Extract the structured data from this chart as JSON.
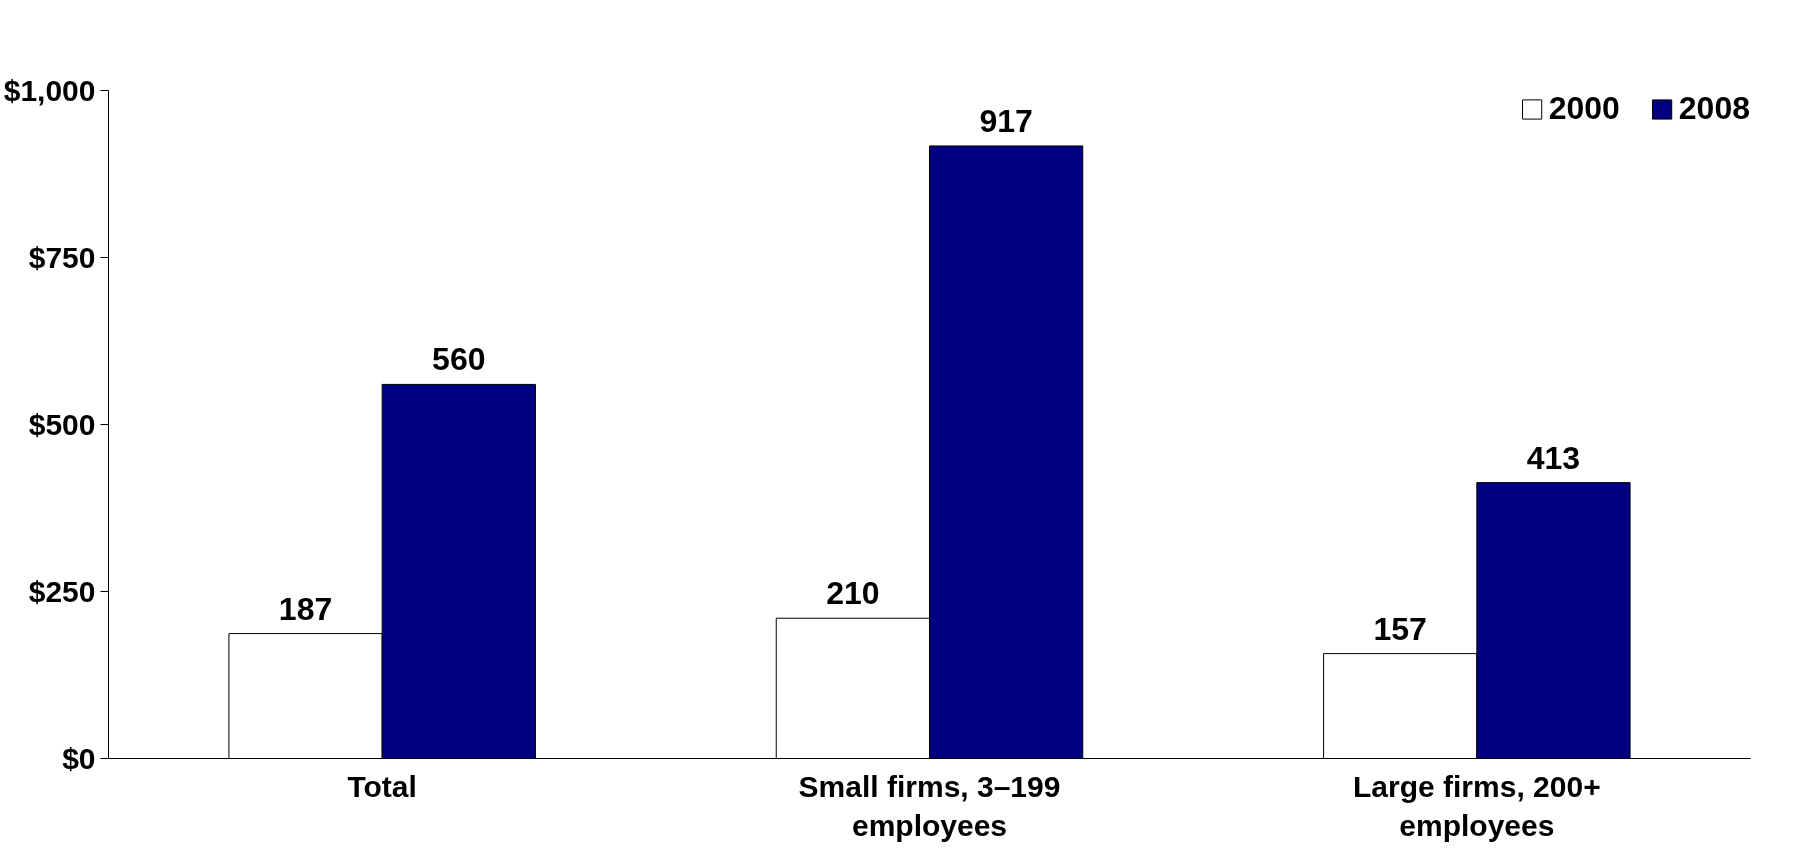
{
  "chart_data": {
    "type": "bar",
    "categories": [
      "Total",
      "Small firms, 3–199 employees",
      "Large firms, 200+ employees"
    ],
    "series": [
      {
        "name": "2000",
        "color": "#ffffff",
        "values": [
          187,
          210,
          157
        ]
      },
      {
        "name": "2008",
        "color": "#000080",
        "values": [
          560,
          917,
          413
        ]
      }
    ],
    "ylim": [
      0,
      1000
    ],
    "yticks": [
      {
        "value": 0,
        "label": "$0"
      },
      {
        "value": 250,
        "label": "$250"
      },
      {
        "value": 500,
        "label": "$500"
      },
      {
        "value": 750,
        "label": "$750"
      },
      {
        "value": 1000,
        "label": "$1,000"
      }
    ],
    "data_labels": true,
    "legend": "top right",
    "grid": false
  }
}
